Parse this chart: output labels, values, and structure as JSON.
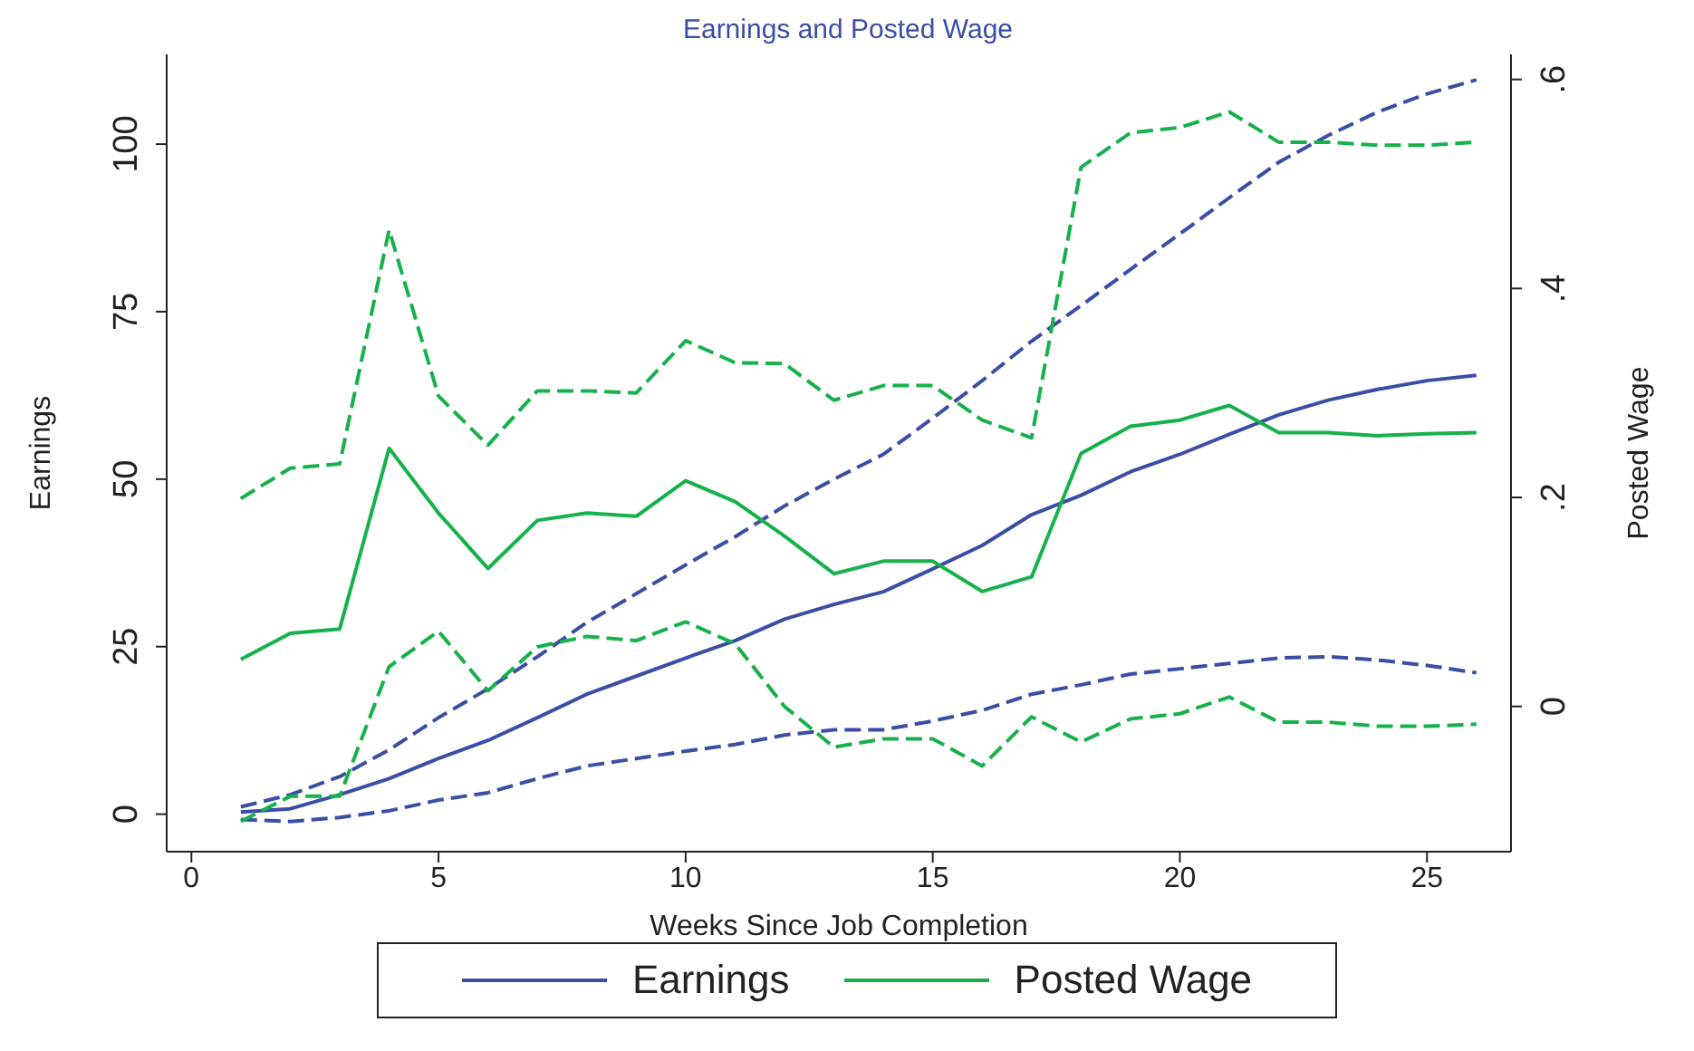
{
  "chart_data": {
    "type": "line",
    "title": "Earnings and Posted Wage",
    "xlabel": "Weeks Since Job Completion",
    "ylabel": "Earnings",
    "y2label": "Posted Wage",
    "x": [
      1,
      2,
      3,
      4,
      5,
      6,
      7,
      8,
      9,
      10,
      11,
      12,
      13,
      14,
      15,
      16,
      17,
      18,
      19,
      20,
      21,
      22,
      23,
      24,
      25,
      26
    ],
    "xlim": [
      -0.5,
      26.7
    ],
    "xticks": [
      0,
      5,
      10,
      15,
      20,
      25
    ],
    "ylim": [
      -5.6,
      113.4
    ],
    "yticks": [
      0,
      25,
      50,
      75,
      100
    ],
    "y2lim": [
      -0.139,
      0.624
    ],
    "y2ticks": [
      0,
      {
        "value": 0.2,
        "label": ".2"
      },
      {
        "value": 0.4,
        "label": ".4"
      },
      {
        "value": 0.6,
        "label": ".6"
      }
    ],
    "marker": "none",
    "grid": false,
    "legend": "bottom",
    "series": [
      {
        "name": "Earnings",
        "color": "#3a4ea6",
        "line_style": "solid",
        "values": [
          0.3,
          0.8,
          2.9,
          5.3,
          8.3,
          11,
          14.4,
          17.9,
          20.6,
          23.3,
          25.9,
          29.1,
          31.3,
          33.2,
          36.6,
          40.1,
          44.7,
          47.6,
          51.1,
          53.7,
          56.7,
          59.6,
          61.8,
          63.4,
          64.7,
          65.5
        ]
      },
      {
        "color": "#3a4ea6",
        "line_style": "dashed",
        "values": [
          1.1,
          2.9,
          5.6,
          9.6,
          14.4,
          18.7,
          23.5,
          28.6,
          32.9,
          37.2,
          41.4,
          46,
          50,
          53.7,
          59.1,
          64.7,
          70.6,
          75.9,
          81.3,
          86.6,
          92,
          97.3,
          101.3,
          104.8,
          107.5,
          109.6
        ]
      },
      {
        "color": "#3a4ea6",
        "line_style": "dashed",
        "values": [
          -0.8,
          -1.1,
          -0.5,
          0.5,
          2.1,
          3.2,
          5.3,
          7.2,
          8.3,
          9.4,
          10.4,
          11.8,
          12.6,
          12.6,
          13.9,
          15.5,
          17.9,
          19.3,
          20.9,
          21.7,
          22.5,
          23.3,
          23.5,
          23,
          22.2,
          21.1
        ]
      },
      {
        "name": "Posted Wage",
        "color": "#16b14a",
        "line_style": "solid",
        "axis": "y2",
        "values": [
          0.045,
          0.07,
          0.074,
          0.247,
          0.185,
          0.132,
          0.178,
          0.185,
          0.182,
          0.216,
          0.196,
          0.163,
          0.127,
          0.139,
          0.139,
          0.11,
          0.124,
          0.242,
          0.268,
          0.274,
          0.288,
          0.262,
          0.262,
          0.259,
          0.261,
          0.262
        ]
      },
      {
        "color": "#16b14a",
        "line_style": "dashed",
        "axis": "y2",
        "values": [
          0.199,
          0.228,
          0.232,
          0.456,
          0.297,
          0.25,
          0.302,
          0.302,
          0.3,
          0.35,
          0.329,
          0.328,
          0.293,
          0.307,
          0.307,
          0.274,
          0.257,
          0.516,
          0.549,
          0.554,
          0.569,
          0.54,
          0.54,
          0.537,
          0.537,
          0.54
        ]
      },
      {
        "color": "#16b14a",
        "line_style": "dashed",
        "axis": "y2",
        "values": [
          -0.11,
          -0.086,
          -0.086,
          0.038,
          0.072,
          0.015,
          0.057,
          0.067,
          0.063,
          0.081,
          0.06,
          0.0,
          -0.039,
          -0.031,
          -0.031,
          -0.057,
          -0.01,
          -0.034,
          -0.012,
          -0.007,
          0.009,
          -0.015,
          -0.015,
          -0.019,
          -0.019,
          -0.017
        ]
      }
    ]
  }
}
